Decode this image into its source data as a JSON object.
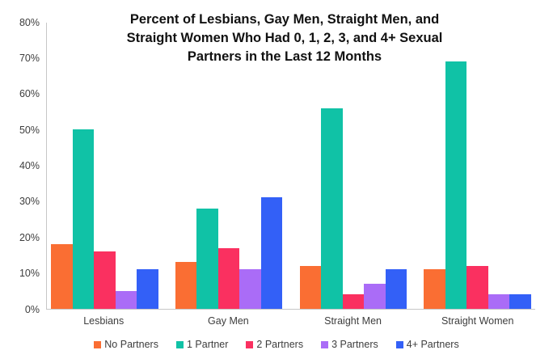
{
  "chart_data": {
    "type": "bar",
    "title": "Percent of Lesbians, Gay Men, Straight Men, and Straight Women Who Had 0, 1, 2, 3, and 4+ Sexual Partners in the Last 12 Months",
    "title_lines": [
      "Percent of Lesbians, Gay Men, Straight Men, and",
      "Straight Women Who Had 0, 1, 2, 3, and 4+ Sexual",
      "Partners in the Last 12 Months"
    ],
    "categories": [
      "Lesbians",
      "Gay Men",
      "Straight Men",
      "Straight Women"
    ],
    "series": [
      {
        "name": "No Partners",
        "color": "#fa6e33",
        "values": [
          18,
          13,
          12,
          11
        ]
      },
      {
        "name": "1 Partner",
        "color": "#10c2a6",
        "values": [
          50,
          28,
          56,
          69
        ]
      },
      {
        "name": "2 Partners",
        "color": "#fa3060",
        "values": [
          16,
          17,
          4,
          12
        ]
      },
      {
        "name": "3 Partners",
        "color": "#aa6cf7",
        "values": [
          5,
          11,
          7,
          4
        ]
      },
      {
        "name": "4+ Partners",
        "color": "#3360f7",
        "values": [
          11,
          31,
          11,
          4
        ]
      }
    ],
    "xlabel": "",
    "ylabel": "",
    "ylim": [
      0,
      80
    ],
    "yticks": [
      {
        "value": 0,
        "label": "0%"
      },
      {
        "value": 10,
        "label": "10%"
      },
      {
        "value": 20,
        "label": "20%"
      },
      {
        "value": 30,
        "label": "30%"
      },
      {
        "value": 40,
        "label": "40%"
      },
      {
        "value": 50,
        "label": "50%"
      },
      {
        "value": 60,
        "label": "60%"
      },
      {
        "value": 70,
        "label": "70%"
      },
      {
        "value": 80,
        "label": "80%"
      }
    ],
    "grid": false,
    "legend_position": "bottom",
    "axis_color": "#c7c7c7",
    "text_color": "#3d3d3d"
  }
}
